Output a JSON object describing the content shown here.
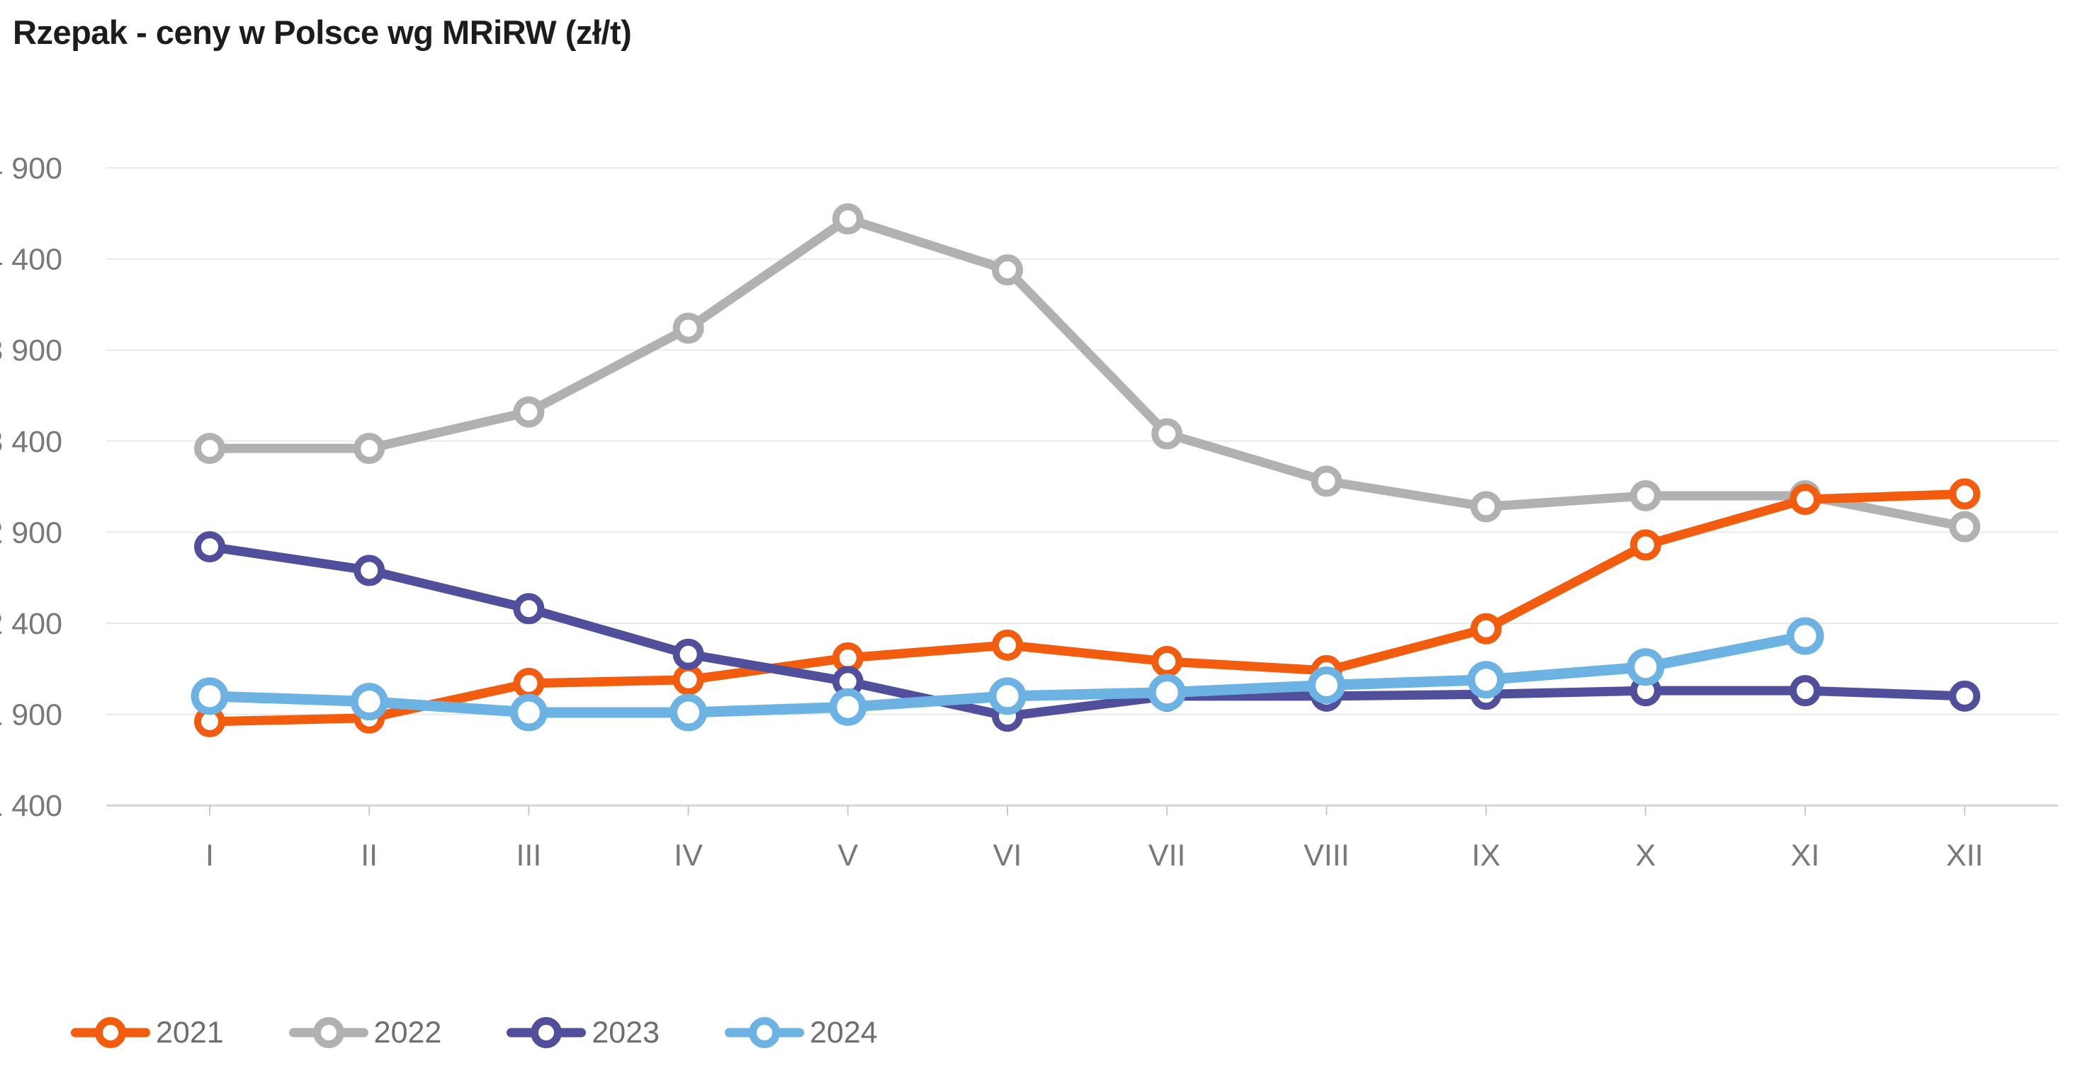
{
  "title": "Rzepak - ceny w Polsce wg MRiRW (zł/t)",
  "chart_data": {
    "type": "line",
    "title": "Rzepak - ceny w Polsce wg MRiRW (zł/t)",
    "x_categories": [
      "I",
      "II",
      "III",
      "IV",
      "V",
      "VI",
      "VII",
      "VIII",
      "IX",
      "X",
      "XI",
      "XII"
    ],
    "y_axis": {
      "min": 1400,
      "max": 4900,
      "step": 500,
      "tick_labels": [
        "4 900",
        "4 400",
        "3 900",
        "3 400",
        "2 900",
        "2 400",
        "1 900",
        "1 400"
      ]
    },
    "grid": true,
    "legend_position": "bottom-left",
    "legend_order": [
      "2021",
      "2022",
      "2023",
      "2024"
    ],
    "draw_order": [
      "2022",
      "2021",
      "2023",
      "2024"
    ],
    "series": [
      {
        "name": "2021",
        "color": "#f25c0e",
        "line_width": 13,
        "marker_radius": 17,
        "marker_stroke": 10,
        "values": [
          1860,
          1880,
          2070,
          2090,
          2210,
          2280,
          2190,
          2140,
          2370,
          2830,
          3080,
          3110
        ]
      },
      {
        "name": "2022",
        "color": "#b1b1b1",
        "line_width": 13,
        "marker_radius": 17,
        "marker_stroke": 10,
        "values": [
          3360,
          3360,
          3560,
          4020,
          4620,
          4340,
          3440,
          3180,
          3040,
          3100,
          3100,
          2930
        ]
      },
      {
        "name": "2023",
        "color": "#514e9c",
        "line_width": 13,
        "marker_radius": 17,
        "marker_stroke": 10,
        "values": [
          2820,
          2690,
          2480,
          2230,
          2080,
          1890,
          2000,
          2000,
          2010,
          2030,
          2030,
          2000
        ]
      },
      {
        "name": "2024",
        "color": "#6cb3e3",
        "line_width": 15,
        "marker_radius": 21,
        "marker_stroke": 11,
        "values": [
          2000,
          1970,
          1910,
          1910,
          1940,
          2000,
          2020,
          2060,
          2090,
          2160,
          2330,
          null
        ]
      }
    ]
  },
  "colors": {
    "background": "#ffffff",
    "gridline": "#e9e9e9",
    "axis_line": "#d6d6d6",
    "tick": "#c9c9c9",
    "axis_label": "#787878",
    "legend_label": "#6e6e6e",
    "title": "#1c1c1c"
  }
}
